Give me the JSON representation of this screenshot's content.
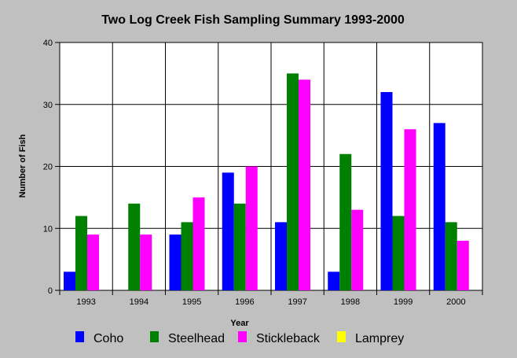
{
  "chart_data": {
    "type": "bar",
    "title": "Two Log Creek Fish Sampling Summary 1993-2000",
    "xlabel": "Year",
    "ylabel": "Number of Fish",
    "ylim": [
      0,
      40
    ],
    "yticks": [
      "0",
      "10",
      "20",
      "30",
      "40"
    ],
    "grid": true,
    "legend_position": "bottom",
    "categories": [
      "1993",
      "1994",
      "1995",
      "1996",
      "1997",
      "1998",
      "1999",
      "2000"
    ],
    "series": [
      {
        "name": "Coho",
        "color": "#0000ff",
        "values": [
          3,
          0,
          9,
          19,
          11,
          3,
          32,
          27
        ]
      },
      {
        "name": "Steelhead",
        "color": "#008000",
        "values": [
          12,
          14,
          11,
          14,
          35,
          22,
          12,
          11
        ]
      },
      {
        "name": "Stickleback",
        "color": "#ff00ff",
        "values": [
          9,
          9,
          15,
          20,
          34,
          13,
          26,
          8
        ]
      },
      {
        "name": "Lamprey",
        "color": "#ffff00",
        "values": [
          0,
          0,
          0,
          0,
          0,
          0,
          0,
          0
        ]
      }
    ]
  }
}
